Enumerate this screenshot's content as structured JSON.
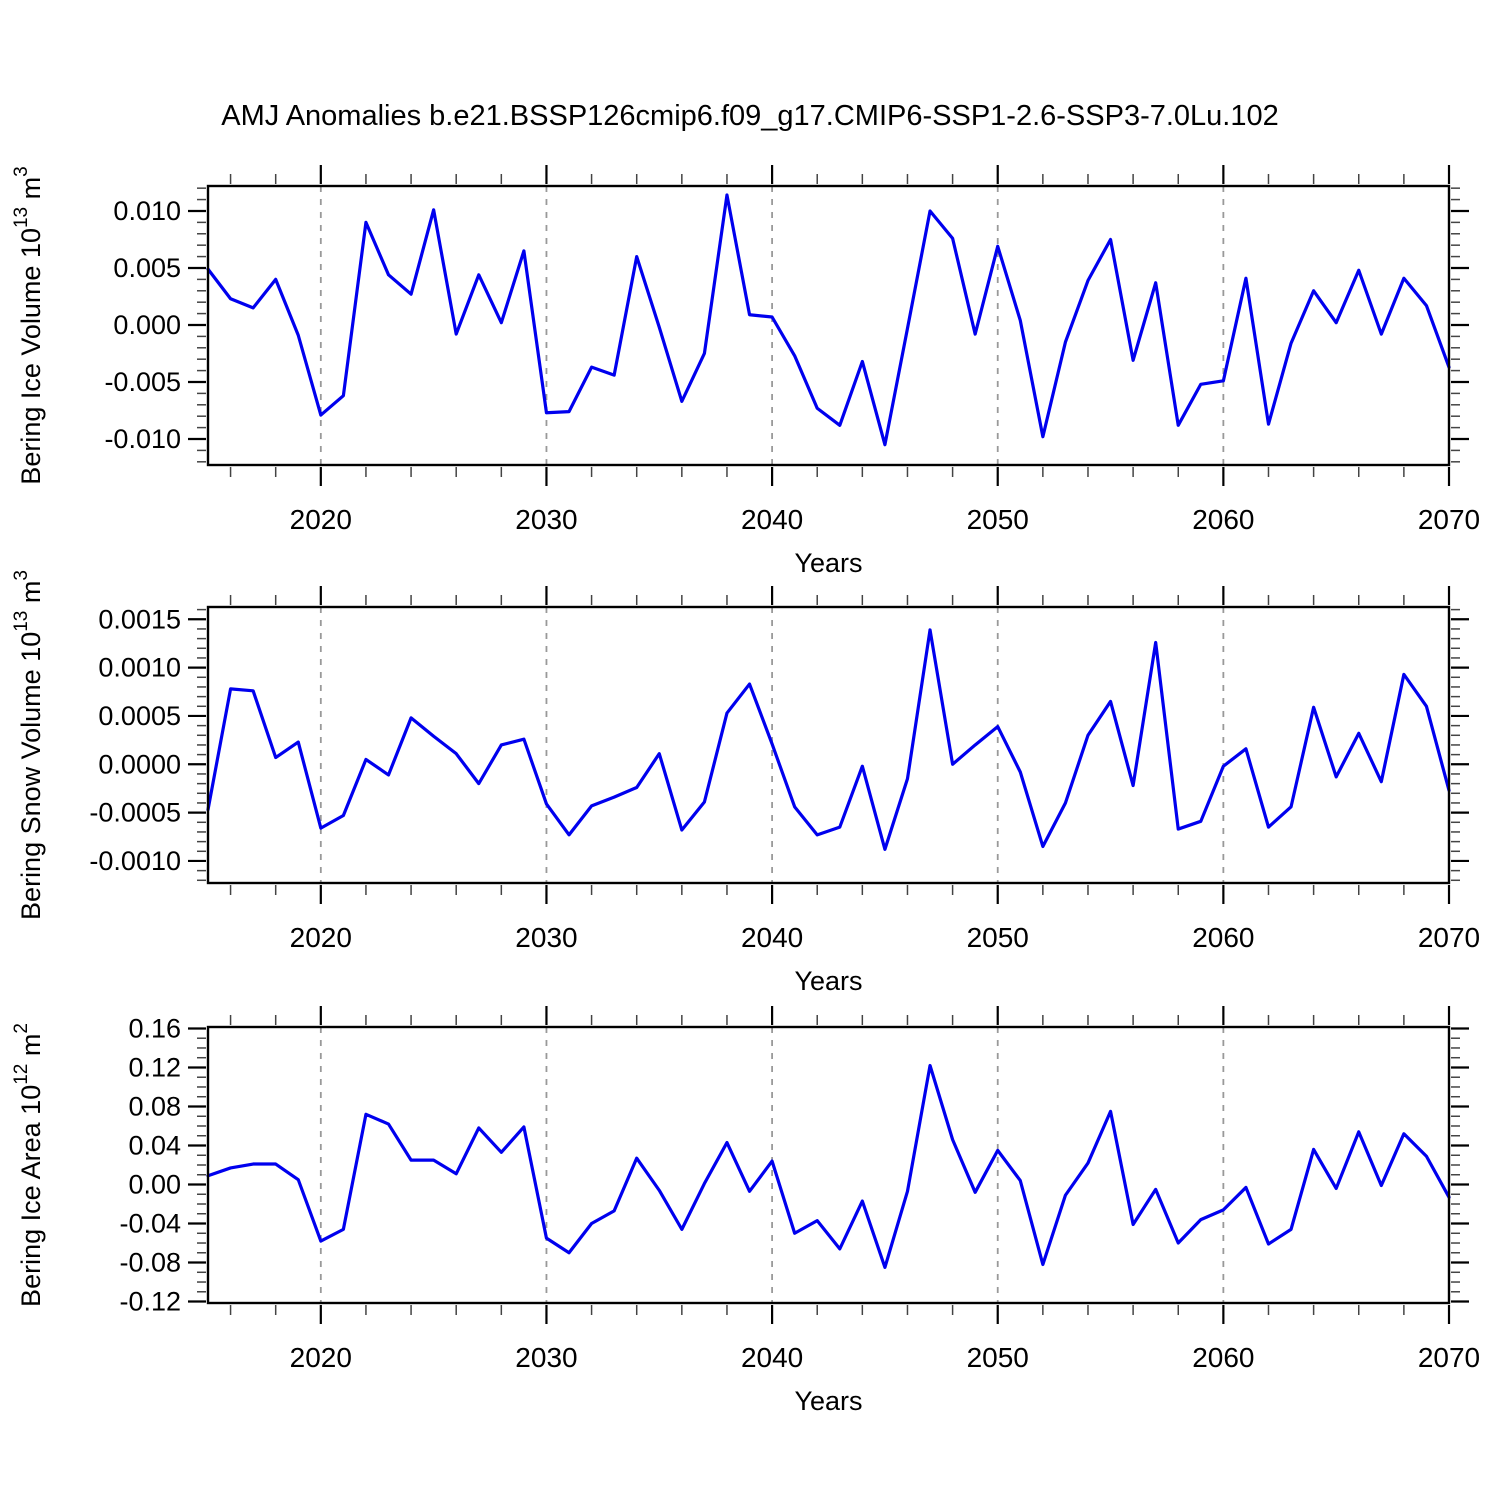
{
  "title": "AMJ Anomalies b.e21.BSSP126cmip6.f09_g17.CMIP6-SSP1-2.6-SSP3-7.0Lu.102",
  "colors": {
    "line": "#0000ee",
    "axis": "#000000",
    "grid": "#999999",
    "minor_tick": "#444444",
    "text": "#000000"
  },
  "years": [
    2015,
    2016,
    2017,
    2018,
    2019,
    2020,
    2021,
    2022,
    2023,
    2024,
    2025,
    2026,
    2027,
    2028,
    2029,
    2030,
    2031,
    2032,
    2033,
    2034,
    2035,
    2036,
    2037,
    2038,
    2039,
    2040,
    2041,
    2042,
    2043,
    2044,
    2045,
    2046,
    2047,
    2048,
    2049,
    2050,
    2051,
    2052,
    2053,
    2054,
    2055,
    2056,
    2057,
    2058,
    2059,
    2060,
    2061,
    2062,
    2063,
    2064,
    2065,
    2066,
    2067,
    2068,
    2069,
    2070
  ],
  "chart_data": [
    {
      "id": "ice-volume",
      "type": "line",
      "title": "Bering Ice Volume anomalies",
      "ylabel_parts": [
        [
          "Bering Ice Volume 10",
          false
        ],
        [
          "13",
          true
        ],
        [
          " m",
          false
        ],
        [
          "3",
          true
        ]
      ],
      "xlabel": "Years",
      "ylim": [
        -0.01228,
        0.01219
      ],
      "ytick_values": [
        0.01,
        0.005,
        0.0,
        -0.005,
        -0.01
      ],
      "ytick_labels": [
        "0.010",
        "0.005",
        "0.000",
        "-0.005",
        "-0.010"
      ],
      "ytick_minor_step": 0.001,
      "xtick_years": [
        2020,
        2030,
        2040,
        2050,
        2060,
        2070
      ],
      "xtick_labels": [
        "2020",
        "2030",
        "2040",
        "2050",
        "2060",
        "2070"
      ],
      "xtick_minor_step": 2,
      "grid_years": [
        2020,
        2030,
        2040,
        2050,
        2060
      ],
      "values": [
        0.0049,
        0.0023,
        0.0015,
        0.004,
        -0.0009,
        -0.0079,
        -0.0062,
        0.009,
        0.0044,
        0.0027,
        0.0101,
        -0.0008,
        0.0044,
        0.0002,
        0.0065,
        -0.0077,
        -0.0076,
        -0.0037,
        -0.0044,
        0.006,
        -0.0002,
        -0.0067,
        -0.0025,
        0.0114,
        0.0009,
        0.0007,
        -0.0027,
        -0.0073,
        -0.0088,
        -0.0032,
        -0.0105,
        -0.0003,
        0.01,
        0.0076,
        -0.0008,
        0.0069,
        0.0004,
        -0.0098,
        -0.0015,
        0.0039,
        0.0075,
        -0.0031,
        0.0037,
        -0.0088,
        -0.0052,
        -0.0049,
        0.0041,
        -0.0087,
        -0.0016,
        0.003,
        0.0002,
        0.0048,
        -0.0008,
        0.0041,
        0.0017,
        -0.0037
      ]
    },
    {
      "id": "snow-volume",
      "type": "line",
      "title": "Bering Snow Volume anomalies",
      "ylabel_parts": [
        [
          "Bering Snow Volume 10",
          false
        ],
        [
          "13",
          true
        ],
        [
          " m",
          false
        ],
        [
          "3",
          true
        ]
      ],
      "xlabel": "Years",
      "ylim": [
        -0.001228,
        0.001627
      ],
      "ytick_values": [
        0.0015,
        0.001,
        0.0005,
        0.0,
        -0.0005,
        -0.001
      ],
      "ytick_labels": [
        "0.0015",
        "0.0010",
        "0.0005",
        "0.0000",
        "-0.0005",
        "-0.0010"
      ],
      "ytick_minor_step": 0.0001,
      "xtick_years": [
        2020,
        2030,
        2040,
        2050,
        2060,
        2070
      ],
      "xtick_labels": [
        "2020",
        "2030",
        "2040",
        "2050",
        "2060",
        "2070"
      ],
      "xtick_minor_step": 2,
      "grid_years": [
        2020,
        2030,
        2040,
        2050,
        2060
      ],
      "values": [
        -0.00047,
        0.00078,
        0.00076,
        7e-05,
        0.00023,
        -0.00066,
        -0.00053,
        5e-05,
        -0.00011,
        0.00048,
        0.00029,
        0.00011,
        -0.0002,
        0.0002,
        0.00026,
        -0.00041,
        -0.00073,
        -0.00043,
        -0.00034,
        -0.00024,
        0.00011,
        -0.00068,
        -0.00039,
        0.00053,
        0.00083,
        0.00021,
        -0.00044,
        -0.00073,
        -0.00065,
        -2e-05,
        -0.00088,
        -0.00015,
        0.00139,
        0.0,
        0.0002,
        0.00039,
        -8e-05,
        -0.00085,
        -0.0004,
        0.0003,
        0.00065,
        -0.00022,
        0.00126,
        -0.00067,
        -0.00059,
        -2e-05,
        0.00016,
        -0.00065,
        -0.00044,
        0.00059,
        -0.00013,
        0.00032,
        -0.00018,
        0.00093,
        0.0006,
        -0.00027
      ]
    },
    {
      "id": "ice-area",
      "type": "line",
      "title": "Bering Ice Area anomalies",
      "ylabel_parts": [
        [
          "Bering Ice Area 10",
          false
        ],
        [
          "12",
          true
        ],
        [
          " m",
          false
        ],
        [
          "2",
          true
        ]
      ],
      "xlabel": "Years",
      "ylim": [
        -0.1215,
        0.1615
      ],
      "ytick_values": [
        0.16,
        0.12,
        0.08,
        0.04,
        0.0,
        -0.04,
        -0.08,
        -0.12
      ],
      "ytick_labels": [
        "0.16",
        "0.12",
        "0.08",
        "0.04",
        "0.00",
        "-0.04",
        "-0.08",
        "-0.12"
      ],
      "ytick_minor_step": 0.01,
      "xtick_years": [
        2020,
        2030,
        2040,
        2050,
        2060,
        2070
      ],
      "xtick_labels": [
        "2020",
        "2030",
        "2040",
        "2050",
        "2060",
        "2070"
      ],
      "xtick_minor_step": 2,
      "grid_years": [
        2020,
        2030,
        2040,
        2050,
        2060
      ],
      "values": [
        0.009,
        0.017,
        0.021,
        0.021,
        0.005,
        -0.058,
        -0.046,
        0.072,
        0.062,
        0.025,
        0.025,
        0.011,
        0.058,
        0.033,
        0.059,
        -0.055,
        -0.07,
        -0.04,
        -0.027,
        0.027,
        -0.006,
        -0.046,
        0.001,
        0.043,
        -0.007,
        0.024,
        -0.05,
        -0.037,
        -0.066,
        -0.017,
        -0.085,
        -0.007,
        0.122,
        0.046,
        -0.008,
        0.035,
        0.004,
        -0.082,
        -0.011,
        0.022,
        0.075,
        -0.041,
        -0.005,
        -0.06,
        -0.036,
        -0.026,
        -0.003,
        -0.061,
        -0.046,
        0.036,
        -0.004,
        0.054,
        -0.001,
        0.052,
        0.029,
        -0.013
      ]
    }
  ]
}
